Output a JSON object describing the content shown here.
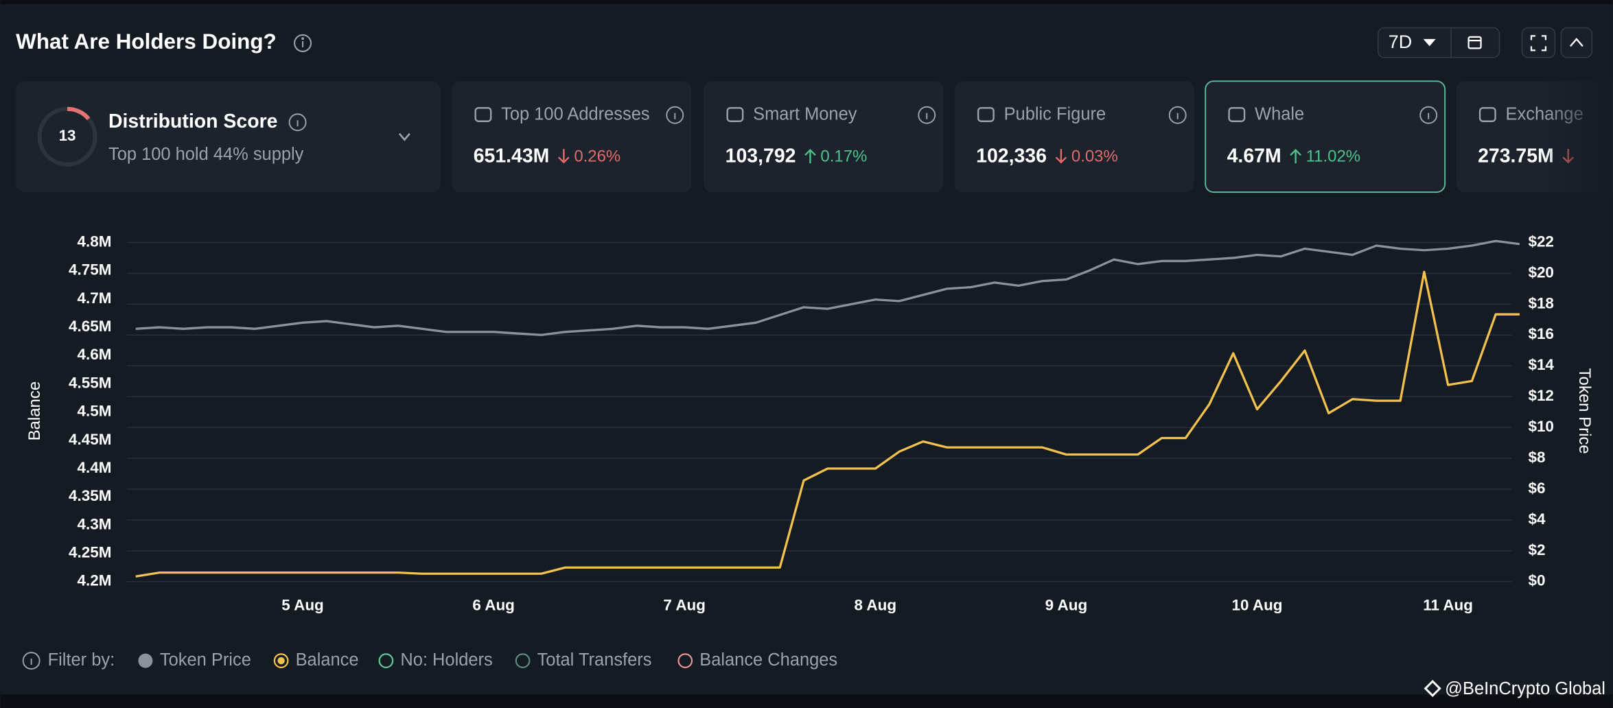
{
  "header": {
    "title": "What Are Holders Doing?",
    "period": "7D"
  },
  "score_card": {
    "score": "13",
    "title": "Distribution Score",
    "subtitle": "Top 100 hold 44% supply"
  },
  "cards": [
    {
      "title": "Top 100 Addresses",
      "value": "651.43M",
      "trend": "down",
      "change": "0.26%"
    },
    {
      "title": "Smart Money",
      "value": "103,792",
      "trend": "up",
      "change": "0.17%"
    },
    {
      "title": "Public Figure",
      "value": "102,336",
      "trend": "down",
      "change": "0.03%"
    },
    {
      "title": "Whale",
      "value": "4.67M",
      "trend": "up",
      "change": "11.02%",
      "selected": true
    },
    {
      "title": "Exchange",
      "value": "273.75M",
      "trend": "down"
    }
  ],
  "chart_data": {
    "type": "line",
    "y_label": "Balance",
    "y2_label": "Token Price",
    "grid": true,
    "categories": [
      null,
      null,
      null,
      null,
      null,
      null,
      null,
      "5 Aug",
      null,
      null,
      null,
      null,
      null,
      null,
      null,
      "6 Aug",
      null,
      null,
      null,
      null,
      null,
      null,
      null,
      "7 Aug",
      null,
      null,
      null,
      null,
      null,
      null,
      null,
      "8 Aug",
      null,
      null,
      null,
      null,
      null,
      null,
      null,
      "9 Aug",
      null,
      null,
      null,
      null,
      null,
      null,
      null,
      "10 Aug",
      null,
      null,
      null,
      null,
      null,
      null,
      null,
      "11 Aug",
      null,
      null,
      null
    ],
    "ylim": [
      4200000,
      4800000
    ],
    "yticks": [
      {
        "value": 4200000,
        "label": "4.2M"
      },
      {
        "value": 4250000,
        "label": "4.25M"
      },
      {
        "value": 4300000,
        "label": "4.3M"
      },
      {
        "value": 4350000,
        "label": "4.35M"
      },
      {
        "value": 4400000,
        "label": "4.4M"
      },
      {
        "value": 4450000,
        "label": "4.45M"
      },
      {
        "value": 4500000,
        "label": "4.5M"
      },
      {
        "value": 4550000,
        "label": "4.55M"
      },
      {
        "value": 4600000,
        "label": "4.6M"
      },
      {
        "value": 4650000,
        "label": "4.65M"
      },
      {
        "value": 4700000,
        "label": "4.7M"
      },
      {
        "value": 4750000,
        "label": "4.75M"
      },
      {
        "value": 4800000,
        "label": "4.8M"
      }
    ],
    "y2lim": [
      0,
      22
    ],
    "y2ticks": [
      {
        "value": 0,
        "label": "$0"
      },
      {
        "value": 2,
        "label": "$2"
      },
      {
        "value": 4,
        "label": "$4"
      },
      {
        "value": 6,
        "label": "$6"
      },
      {
        "value": 8,
        "label": "$8"
      },
      {
        "value": 10,
        "label": "$10"
      },
      {
        "value": 12,
        "label": "$12"
      },
      {
        "value": 14,
        "label": "$14"
      },
      {
        "value": 16,
        "label": "$16"
      },
      {
        "value": 18,
        "label": "$18"
      },
      {
        "value": 20,
        "label": "$20"
      },
      {
        "value": 22,
        "label": "$22"
      }
    ],
    "series": [
      {
        "name": "Token Price",
        "color": "#8a929b",
        "axis": "y2",
        "values": [
          16.4,
          16.5,
          16.4,
          16.5,
          16.5,
          16.4,
          16.6,
          16.8,
          16.9,
          16.7,
          16.5,
          16.6,
          16.4,
          16.2,
          16.2,
          16.2,
          16.1,
          16.0,
          16.2,
          16.3,
          16.4,
          16.6,
          16.5,
          16.5,
          16.4,
          16.6,
          16.8,
          17.3,
          17.8,
          17.7,
          18.0,
          18.3,
          18.2,
          18.6,
          19.0,
          19.1,
          19.4,
          19.2,
          19.5,
          19.6,
          20.2,
          20.9,
          20.6,
          20.8,
          20.8,
          20.9,
          21.0,
          21.2,
          21.1,
          21.6,
          21.4,
          21.2,
          21.8,
          21.6,
          21.5,
          21.6,
          21.8,
          22.1,
          21.9
        ]
      },
      {
        "name": "Balance",
        "color": "#f2c14e",
        "values": [
          4209000,
          4216000,
          4216000,
          4216000,
          4216000,
          4216000,
          4216000,
          4216000,
          4216000,
          4216000,
          4216000,
          4216000,
          4214000,
          4214000,
          4214000,
          4214000,
          4214000,
          4214000,
          4225000,
          4225000,
          4225000,
          4225000,
          4225000,
          4225000,
          4225000,
          4225000,
          4225000,
          4225000,
          4379000,
          4400000,
          4400000,
          4400000,
          4430000,
          4448000,
          4437500,
          4437500,
          4437500,
          4437500,
          4437500,
          4425000,
          4425000,
          4425000,
          4425000,
          4454000,
          4454000,
          4514000,
          4604000,
          4505000,
          4555000,
          4609000,
          4498000,
          4523000,
          4520000,
          4520000,
          4748000,
          4548000,
          4555000,
          4673000,
          4673000
        ]
      }
    ],
    "filter_label": "Filter by:",
    "other_filters": [
      {
        "name": "No: Holders",
        "color": "#5fc79a"
      },
      {
        "name": "Total Transfers",
        "color": "#5a8a82"
      },
      {
        "name": "Balance Changes",
        "color": "#e8909a"
      }
    ]
  },
  "watermark": "@BeInCrypto Global"
}
